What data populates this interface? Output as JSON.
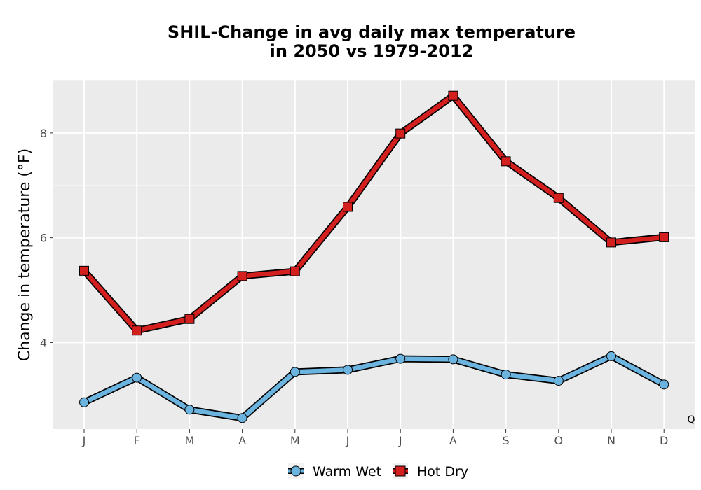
{
  "chart_data": {
    "type": "line",
    "title_lines": [
      "SHIL-Change in avg daily max temperature",
      "in 2050 vs 1979-2012"
    ],
    "ylabel": "Change in temperature (°F)",
    "xlabel": "",
    "categories": [
      "J",
      "F",
      "M",
      "A",
      "M",
      "J",
      "J",
      "A",
      "S",
      "O",
      "N",
      "D"
    ],
    "ylim": [
      2.35,
      9.0
    ],
    "yticks": [
      4,
      6,
      8
    ],
    "grid": true,
    "legend_position": "bottom",
    "corner_label": "Q",
    "series": [
      {
        "name": "Warm Wet",
        "marker": "circle",
        "color": "#6cb4e0",
        "values": [
          2.86,
          3.33,
          2.72,
          2.56,
          3.44,
          3.48,
          3.69,
          3.68,
          3.39,
          3.27,
          3.74,
          3.2
        ]
      },
      {
        "name": "Hot Dry",
        "marker": "square",
        "color": "#d41f1f",
        "values": [
          5.37,
          4.23,
          4.45,
          5.27,
          5.36,
          6.59,
          7.99,
          8.71,
          7.46,
          6.76,
          5.91,
          6.01
        ]
      }
    ]
  }
}
